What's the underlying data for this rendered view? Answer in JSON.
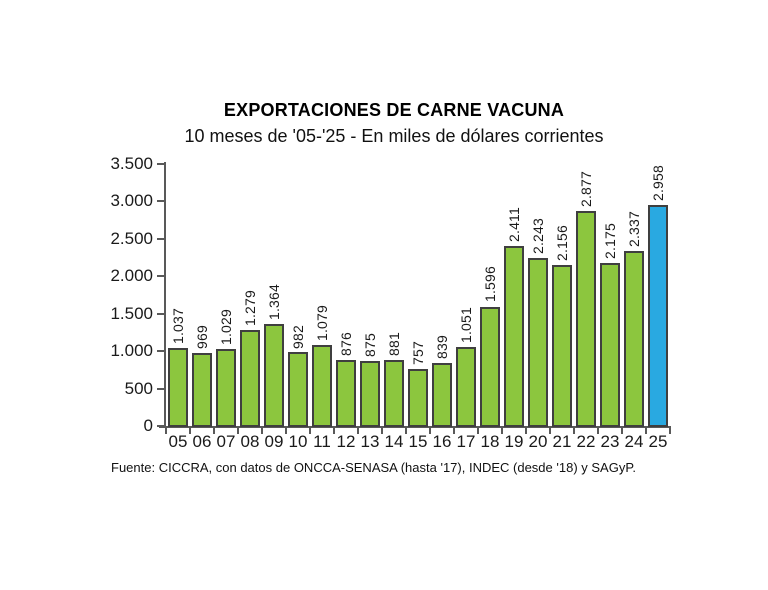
{
  "chart_data": {
    "type": "bar",
    "title": "EXPORTACIONES DE CARNE VACUNA",
    "subtitle": "10 meses de '05-'25 - En miles de dólares corrientes",
    "source": "Fuente: CICCRA, con datos de ONCCA-SENASA (hasta '17), INDEC (desde '18) y SAGyP.",
    "categories": [
      "05",
      "06",
      "07",
      "08",
      "09",
      "10",
      "11",
      "12",
      "13",
      "14",
      "15",
      "16",
      "17",
      "18",
      "19",
      "20",
      "21",
      "22",
      "23",
      "24",
      "25"
    ],
    "values": [
      1037,
      969,
      1029,
      1279,
      1364,
      982,
      1079,
      876,
      875,
      881,
      757,
      839,
      1051,
      1596,
      2411,
      2243,
      2156,
      2877,
      2175,
      2337,
      2958
    ],
    "value_labels": [
      "1.037",
      "969",
      "1.029",
      "1.279",
      "1.364",
      "982",
      "1.079",
      "876",
      "875",
      "881",
      "757",
      "839",
      "1.051",
      "1.596",
      "2.411",
      "2.243",
      "2.156",
      "2.877",
      "2.175",
      "2.337",
      "2.958"
    ],
    "xlabel": "",
    "ylabel": "",
    "ylim": [
      0,
      3500
    ],
    "ytick_step": 500,
    "ytick_labels": [
      "0",
      "500",
      "1.000",
      "1.500",
      "2.000",
      "2.500",
      "3.000",
      "3.500"
    ],
    "grid": false,
    "legend": "none",
    "highlight_index": 20,
    "colors": {
      "bar_fill": "#8cc63e",
      "bar_highlight_fill": "#29a9e1",
      "bar_border": "#3f3f3f",
      "axis": "#595959",
      "text": "#1a1a1a"
    }
  }
}
